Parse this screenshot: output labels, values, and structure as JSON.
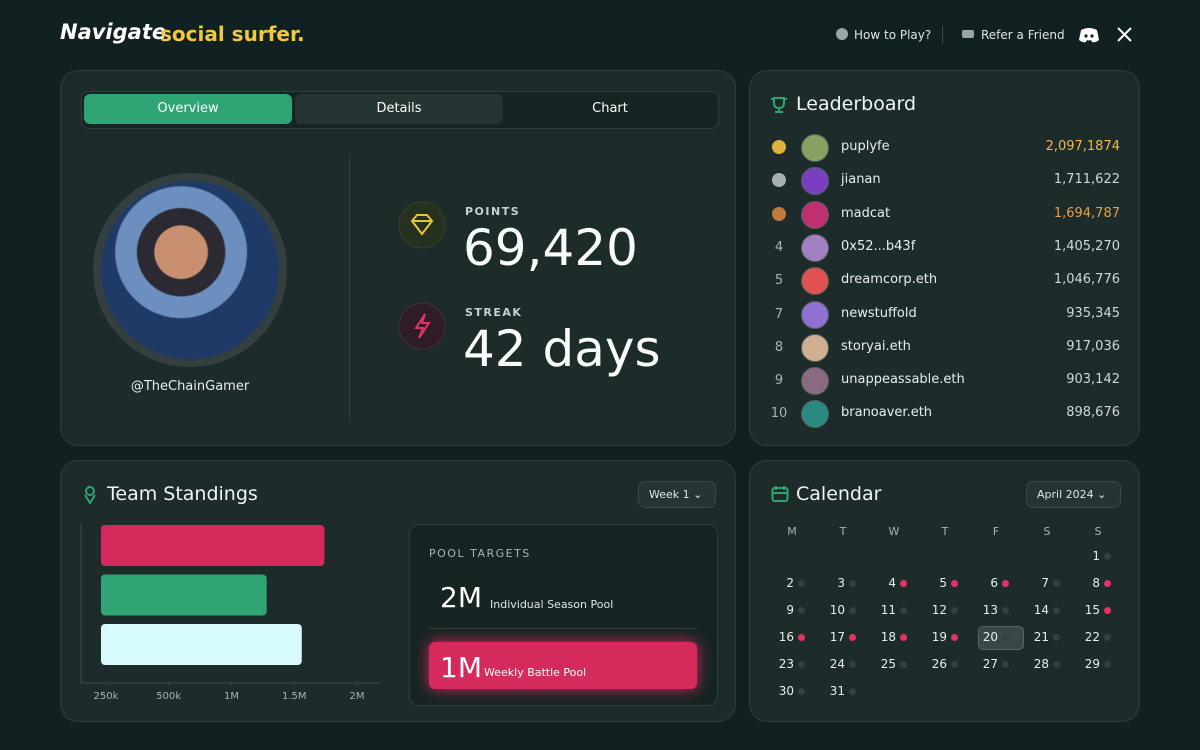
{
  "header": {
    "logo": "Navigate",
    "tagline": "social surfer.",
    "nav": [
      "How to Play?",
      "Refer a Friend"
    ]
  },
  "tabs": {
    "items": [
      "Overview",
      "Details",
      "Chart"
    ],
    "active": 0
  },
  "profile": {
    "handle": "@TheChainGamer",
    "stats": [
      {
        "label": "POINTS",
        "value": "69,420"
      },
      {
        "label": "STREAK",
        "value": "42 days"
      }
    ]
  },
  "leaderboard": {
    "title": "Leaderboard",
    "entries": [
      {
        "medal": "#e0b23a",
        "name": "puplyfe",
        "score": "2,097,1874",
        "score_color": "#f2b84b"
      },
      {
        "medal": "#a9b0b3",
        "name": "jianan",
        "score": "1,711,622"
      },
      {
        "medal": "#c07a3e",
        "name": "madcat",
        "score": "1,694,787",
        "score_color": "#e8a04a"
      },
      {
        "rank": "4",
        "name": "0x52...b43f",
        "score": "1,405,270"
      },
      {
        "rank": "5",
        "name": "dreamcorp.eth",
        "score": "1,046,776"
      },
      {
        "rank": "7",
        "name": "newstuffold",
        "score": "935,345"
      },
      {
        "rank": "8",
        "name": "storyai.eth",
        "score": "917,036"
      },
      {
        "rank": "9",
        "name": "unappeassable.eth",
        "score": "903,142"
      },
      {
        "rank": "10",
        "name": "branoaver.eth",
        "score": "898,676"
      }
    ]
  },
  "team_standings": {
    "title": "Team Standings",
    "filter": "Week 1",
    "pool": {
      "title": "POOL TARGETS",
      "items": [
        {
          "amount": "2M",
          "label": "Individual Season Pool"
        },
        {
          "amount": "1M",
          "label": "Weekly Battle Pool",
          "featured": true
        }
      ]
    }
  },
  "chart_data": {
    "type": "bar",
    "orientation": "horizontal",
    "values": [
      1740000,
      1280000,
      1560000
    ],
    "colors": [
      "#d42a5c",
      "#2fa474",
      "#d8fbfd"
    ],
    "xlim": [
      150000,
      2190000
    ],
    "xticks": [
      {
        "value": 250000,
        "label": "250k"
      },
      {
        "value": 500000,
        "label": "500k"
      },
      {
        "value": 1000000,
        "label": "1M"
      },
      {
        "value": 1500000,
        "label": "1.5M"
      },
      {
        "value": 2000000,
        "label": "2M"
      }
    ]
  },
  "calendar": {
    "title": "Calendar",
    "month": "April 2024",
    "weekdays": [
      "M",
      "T",
      "W",
      "T",
      "F",
      "S",
      "S"
    ],
    "days": [
      {
        "day": 1,
        "event": false
      },
      {
        "day": 2,
        "event": false
      },
      {
        "day": 3,
        "event": false
      },
      {
        "day": 4,
        "event": true
      },
      {
        "day": 5,
        "event": true
      },
      {
        "day": 6,
        "event": true
      },
      {
        "day": 7,
        "event": false
      },
      {
        "day": 8,
        "event": true
      },
      {
        "day": 9,
        "event": false
      },
      {
        "day": 10,
        "event": false
      },
      {
        "day": 11,
        "event": false
      },
      {
        "day": 12,
        "event": false
      },
      {
        "day": 13,
        "event": false
      },
      {
        "day": 14,
        "event": false
      },
      {
        "day": 15,
        "event": true
      },
      {
        "day": 16,
        "event": true
      },
      {
        "day": 17,
        "event": true
      },
      {
        "day": 18,
        "event": true
      },
      {
        "day": 19,
        "event": true
      },
      {
        "day": 20,
        "event": false,
        "selected": true
      },
      {
        "day": 21,
        "event": false
      },
      {
        "day": 22,
        "event": false
      },
      {
        "day": 23,
        "event": false
      },
      {
        "day": 24,
        "event": false
      },
      {
        "day": 25,
        "event": false
      },
      {
        "day": 26,
        "event": false
      },
      {
        "day": 27,
        "event": false
      },
      {
        "day": 28,
        "event": false
      },
      {
        "day": 29,
        "event": false
      },
      {
        "day": 30,
        "event": false
      },
      {
        "day": 31,
        "event": false
      }
    ]
  }
}
